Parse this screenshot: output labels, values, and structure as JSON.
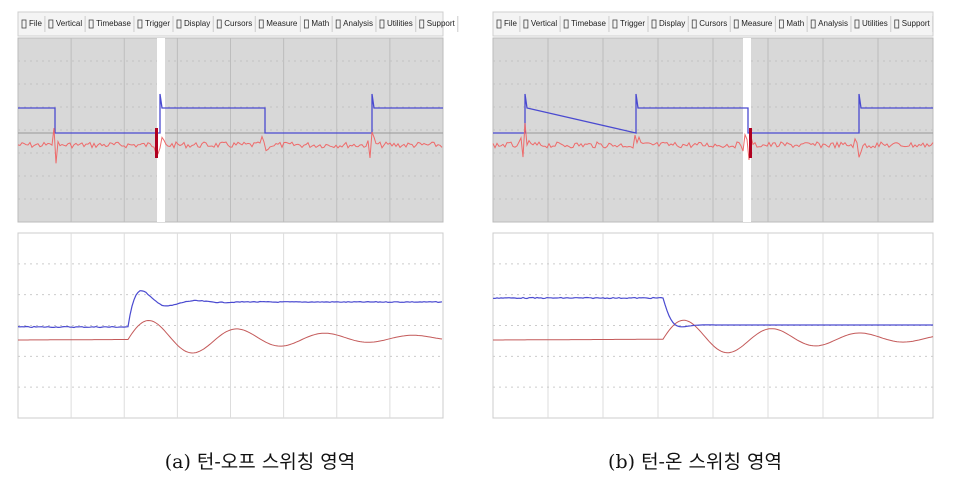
{
  "panels": [
    {
      "menu": [
        "File",
        "Vertical",
        "Timebase",
        "Trigger",
        "Display",
        "Cursors",
        "Measure",
        "Math",
        "Analysis",
        "Utilities",
        "Support"
      ],
      "caption": "(a) 턴-오프 스위칭 영역"
    },
    {
      "menu": [
        "File",
        "Vertical",
        "Timebase",
        "Trigger",
        "Display",
        "Cursors",
        "Measure",
        "Math",
        "Analysis",
        "Utilities",
        "Support"
      ],
      "caption": "(b) 턴-온 스위칭 영역"
    }
  ]
}
